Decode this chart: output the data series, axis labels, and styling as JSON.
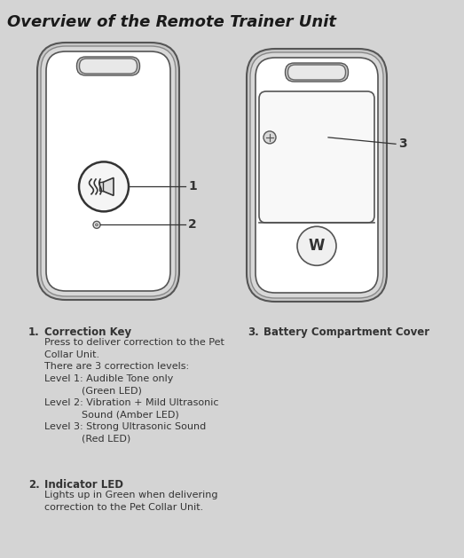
{
  "title": "Overview of the Remote Trainer Unit",
  "bg_color": "#d4d4d4",
  "title_fontsize": 13,
  "body_fontsize": 8.5,
  "item1_bold": "Correction Key",
  "item1_text": "Press to deliver correction to the Pet\nCollar Unit.\nThere are 3 correction levels:\nLevel 1: Audible Tone only\n            (Green LED)\nLevel 2: Vibration + Mild Ultrasonic\n            Sound (Amber LED)\nLevel 3: Strong Ultrasonic Sound\n            (Red LED)",
  "item2_bold": "Indicator LED",
  "item2_text": "Lights up in Green when delivering\ncorrection to the Pet Collar Unit.",
  "item3_bold": "Battery Compartment Cover",
  "label_color": "#1a1a1a",
  "device_line_color": "#333333",
  "device_fill_color": "#ffffff",
  "device_shadow_color": "#c0c0c0"
}
